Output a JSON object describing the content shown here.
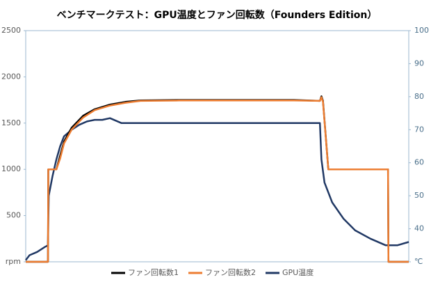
{
  "chart_data": {
    "type": "line",
    "title": "ベンチマークテスト：GPU温度とファン回転数（Founders Edition）",
    "xlim": [
      0,
      100
    ],
    "ylim": [
      0,
      2500
    ],
    "yticks": [
      {
        "value": 0,
        "label": "rpm"
      },
      500,
      1000,
      1500,
      2000,
      2500
    ],
    "y2lim": [
      30,
      100
    ],
    "y2ticks": [
      {
        "value": 30,
        "label": "℃"
      },
      40,
      50,
      60,
      70,
      80,
      90,
      100
    ],
    "legend": "bottom",
    "series": [
      {
        "name": "ファン回転数1",
        "color": "#000000",
        "x": [
          0,
          5.8,
          5.9,
          8,
          9,
          10,
          12,
          15,
          18,
          22,
          26,
          30,
          40,
          50,
          60,
          70,
          76.8,
          77.2,
          77.6,
          79,
          94.6,
          94.7,
          100
        ],
        "values": [
          0,
          0,
          1000,
          1000,
          1150,
          1300,
          1450,
          1580,
          1650,
          1700,
          1730,
          1745,
          1750,
          1750,
          1750,
          1750,
          1740,
          1790,
          1740,
          1000,
          1000,
          0,
          0
        ]
      },
      {
        "name": "ファン回転数2",
        "color": "#ed7d31",
        "x": [
          0,
          5.8,
          5.9,
          8,
          9,
          10,
          12,
          15,
          18,
          22,
          26,
          30,
          40,
          50,
          60,
          70,
          76.8,
          77.2,
          77.6,
          79,
          94.6,
          94.7,
          100
        ],
        "values": [
          0,
          0,
          1000,
          1000,
          1120,
          1280,
          1430,
          1560,
          1640,
          1690,
          1720,
          1740,
          1745,
          1745,
          1745,
          1745,
          1740,
          1780,
          1730,
          1000,
          1000,
          0,
          0
        ]
      },
      {
        "name": "GPU温度",
        "color": "#203864",
        "axis": "y2",
        "x": [
          0,
          1,
          3,
          5,
          5.8,
          6,
          7,
          8,
          9,
          10,
          12,
          14,
          16,
          18,
          20,
          22,
          25,
          30,
          40,
          50,
          60,
          70,
          76.8,
          77.2,
          78,
          80,
          83,
          86,
          90,
          94,
          97,
          100
        ],
        "values": [
          30.5,
          32,
          33,
          34.5,
          35,
          50,
          56,
          61,
          65,
          68,
          70,
          71.5,
          72.5,
          73,
          73,
          73.5,
          72,
          72,
          72,
          72,
          72,
          72,
          72,
          61,
          54,
          48,
          43,
          39.5,
          37,
          35,
          35,
          36
        ]
      }
    ]
  }
}
